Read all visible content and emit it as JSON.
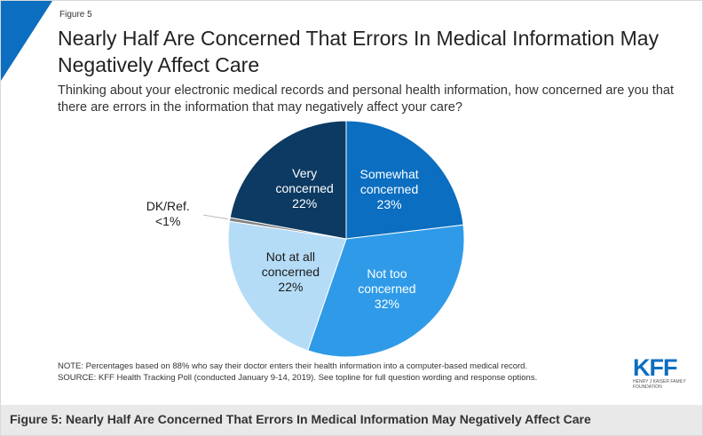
{
  "chart_data": {
    "type": "pie",
    "figure_label": "Figure 5",
    "title": "Nearly Half Are Concerned That Errors In Medical Information May Negatively Affect Care",
    "subtitle": "Thinking about your electronic medical records and personal health information, how concerned are you that there are errors in the information that may negatively affect your care?",
    "categories": [
      "Somewhat concerned",
      "Not too concerned",
      "Not at all concerned",
      "DK/Ref.",
      "Very concerned"
    ],
    "values": [
      23,
      32,
      22,
      0.5,
      22
    ],
    "value_labels": [
      "23%",
      "32%",
      "22%",
      "<1%",
      "22%"
    ],
    "colors": [
      "#0b6ec0",
      "#2f9be8",
      "#b5dcf7",
      "#808080",
      "#0d3a62"
    ],
    "label_colors": [
      "#ffffff",
      "#ffffff",
      "#1a1a1a",
      "#1a1a1a",
      "#ffffff"
    ],
    "notes": [
      "NOTE: Percentages based on 88% who say their doctor enters their health information into a computer-based medical record.",
      "SOURCE: KFF Health Tracking Poll (conducted January 9-14, 2019). See topline for full question wording and response options."
    ],
    "logo": "KFF",
    "logo_sub": "HENRY J KAISER FAMILY FOUNDATION"
  },
  "caption": "Figure 5: Nearly Half Are Concerned That Errors In Medical Information May Negatively Affect Care"
}
